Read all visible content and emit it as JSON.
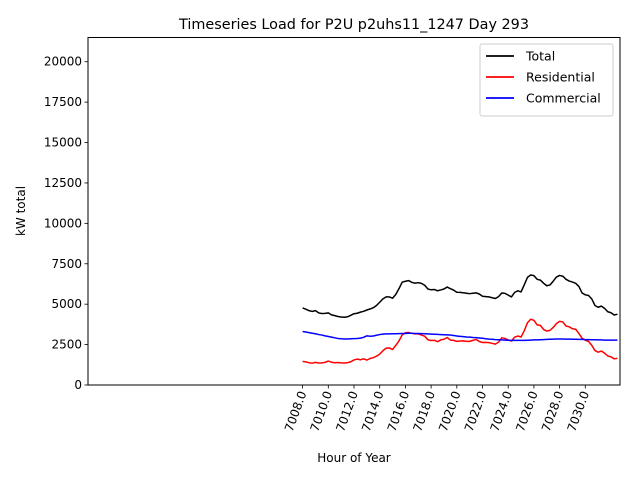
{
  "chart_data": {
    "type": "line",
    "title": "Timeseries Load for P2U p2uhs11_1247  Day 293",
    "xlabel": "Hour of Year",
    "ylabel": "kW total",
    "xlim": [
      6991.3,
      7032.7
    ],
    "ylim": [
      0,
      21500
    ],
    "x_ticks": [
      7008,
      7010,
      7012,
      7014,
      7016,
      7018,
      7020,
      7022,
      7024,
      7026,
      7028,
      7030
    ],
    "x_tick_labels": [
      "7008.0",
      "7010.0",
      "7012.0",
      "7014.0",
      "7016.0",
      "7018.0",
      "7020.0",
      "7022.0",
      "7024.0",
      "7026.0",
      "7028.0",
      "7030.0"
    ],
    "y_ticks": [
      0,
      2500,
      5000,
      7500,
      10000,
      12500,
      15000,
      17500,
      20000
    ],
    "y_tick_labels": [
      "0",
      "2500",
      "5000",
      "7500",
      "10000",
      "12500",
      "15000",
      "17500",
      "20000"
    ],
    "legend_location": "top-right",
    "x_start": 7008,
    "x_step": 0.25,
    "series": [
      {
        "name": "Total",
        "color": "#000000",
        "values": [
          4770,
          4690,
          4600,
          4550,
          4600,
          4460,
          4420,
          4430,
          4460,
          4340,
          4290,
          4240,
          4210,
          4190,
          4220,
          4310,
          4410,
          4440,
          4510,
          4560,
          4640,
          4700,
          4780,
          4920,
          5120,
          5330,
          5450,
          5450,
          5370,
          5600,
          5960,
          6360,
          6420,
          6460,
          6350,
          6300,
          6330,
          6290,
          6170,
          5940,
          5890,
          5910,
          5830,
          5880,
          5940,
          6060,
          5960,
          5870,
          5740,
          5730,
          5710,
          5680,
          5650,
          5680,
          5700,
          5630,
          5490,
          5470,
          5450,
          5400,
          5350,
          5470,
          5690,
          5670,
          5560,
          5450,
          5730,
          5830,
          5760,
          6200,
          6660,
          6810,
          6770,
          6540,
          6490,
          6300,
          6140,
          6190,
          6420,
          6680,
          6780,
          6730,
          6540,
          6430,
          6370,
          6290,
          6100,
          5690,
          5580,
          5540,
          5330,
          4920,
          4810,
          4880,
          4740,
          4530,
          4470,
          4330,
          4380
        ]
      },
      {
        "name": "Residential",
        "color": "#ff0000",
        "values": [
          1460,
          1430,
          1380,
          1350,
          1400,
          1360,
          1370,
          1400,
          1480,
          1410,
          1380,
          1390,
          1370,
          1360,
          1380,
          1440,
          1550,
          1600,
          1560,
          1620,
          1540,
          1640,
          1690,
          1780,
          1910,
          2120,
          2280,
          2290,
          2200,
          2450,
          2730,
          3100,
          3230,
          3250,
          3190,
          3160,
          3170,
          3090,
          3020,
          2800,
          2750,
          2770,
          2680,
          2790,
          2830,
          2940,
          2780,
          2760,
          2700,
          2720,
          2730,
          2700,
          2700,
          2760,
          2820,
          2690,
          2630,
          2640,
          2620,
          2580,
          2530,
          2650,
          2920,
          2880,
          2790,
          2720,
          2960,
          3030,
          2970,
          3360,
          3850,
          4070,
          4000,
          3720,
          3690,
          3440,
          3340,
          3380,
          3560,
          3800,
          3940,
          3900,
          3650,
          3600,
          3480,
          3450,
          3190,
          2890,
          2770,
          2700,
          2460,
          2130,
          2030,
          2100,
          1970,
          1800,
          1740,
          1620,
          1650
        ]
      },
      {
        "name": "Commercial",
        "color": "#0000ff",
        "values": [
          3310,
          3280,
          3240,
          3200,
          3170,
          3120,
          3090,
          3040,
          3000,
          2960,
          2920,
          2880,
          2860,
          2850,
          2850,
          2860,
          2870,
          2880,
          2900,
          2950,
          3040,
          3020,
          3030,
          3080,
          3120,
          3150,
          3160,
          3160,
          3170,
          3170,
          3180,
          3190,
          3190,
          3200,
          3200,
          3190,
          3190,
          3180,
          3170,
          3160,
          3150,
          3140,
          3130,
          3120,
          3110,
          3100,
          3090,
          3060,
          3030,
          3010,
          2990,
          2970,
          2960,
          2940,
          2930,
          2910,
          2890,
          2860,
          2840,
          2830,
          2810,
          2800,
          2790,
          2780,
          2770,
          2760,
          2760,
          2760,
          2760,
          2760,
          2770,
          2780,
          2790,
          2790,
          2800,
          2810,
          2820,
          2830,
          2840,
          2850,
          2850,
          2850,
          2840,
          2840,
          2830,
          2830,
          2820,
          2820,
          2810,
          2810,
          2800,
          2800,
          2790,
          2790,
          2780,
          2780,
          2780,
          2780,
          2780
        ]
      }
    ]
  }
}
